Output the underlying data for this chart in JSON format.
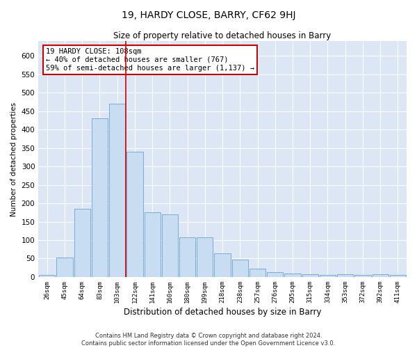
{
  "title": "19, HARDY CLOSE, BARRY, CF62 9HJ",
  "subtitle": "Size of property relative to detached houses in Barry",
  "xlabel": "Distribution of detached houses by size in Barry",
  "ylabel": "Number of detached properties",
  "footer_line1": "Contains HM Land Registry data © Crown copyright and database right 2024.",
  "footer_line2": "Contains public sector information licensed under the Open Government Licence v3.0.",
  "bar_color": "#c9ddf2",
  "bar_edge_color": "#7aaad4",
  "vline_color": "#cc0000",
  "annotation_text": "19 HARDY CLOSE: 108sqm\n← 40% of detached houses are smaller (767)\n59% of semi-detached houses are larger (1,137) →",
  "categories": [
    "26sqm",
    "45sqm",
    "64sqm",
    "83sqm",
    "103sqm",
    "122sqm",
    "141sqm",
    "160sqm",
    "180sqm",
    "199sqm",
    "218sqm",
    "238sqm",
    "257sqm",
    "276sqm",
    "295sqm",
    "315sqm",
    "334sqm",
    "353sqm",
    "372sqm",
    "392sqm",
    "411sqm"
  ],
  "values": [
    5,
    53,
    185,
    430,
    470,
    340,
    175,
    170,
    108,
    108,
    65,
    48,
    22,
    13,
    10,
    8,
    5,
    8,
    5,
    8,
    5
  ],
  "vline_x": 4.5,
  "ylim": [
    0,
    640
  ],
  "yticks": [
    0,
    50,
    100,
    150,
    200,
    250,
    300,
    350,
    400,
    450,
    500,
    550,
    600
  ],
  "bg_color": "#dce6f5",
  "fig_bg": "white"
}
